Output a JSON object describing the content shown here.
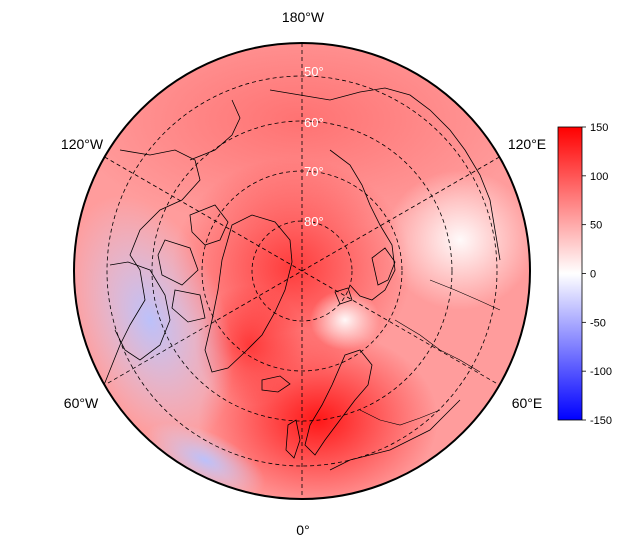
{
  "map": {
    "projection": "north-polar-stereographic",
    "orientation": "0° at bottom, 180°W at top",
    "longitude_labels": {
      "top": "180°W",
      "upper_left": "120°W",
      "upper_right": "120°E",
      "lower_left": "60°W",
      "lower_right": "60°E",
      "bottom": "0°"
    },
    "latitude_labels": [
      "50°",
      "60°",
      "70°",
      "80°"
    ],
    "graticule_style": "dashed",
    "coastlines": "black"
  },
  "colorbar": {
    "min": -150,
    "max": 150,
    "ticks": [
      "150",
      "100",
      "50",
      "0",
      "-50",
      "-100",
      "-150"
    ],
    "tick_values": [
      150,
      100,
      50,
      0,
      -50,
      -100,
      -150
    ],
    "colors": {
      "low": "#0000ff",
      "mid": "#ffffff",
      "high": "#ff0000"
    }
  },
  "field_description": {
    "pole_region": "strong positive (red)",
    "scandinavia_north_atlantic": "strong positive (red)",
    "north_america_hudson_bay": "negative (blue)",
    "eastern_russia": "near zero (white)"
  }
}
